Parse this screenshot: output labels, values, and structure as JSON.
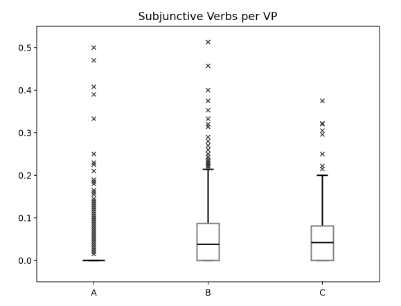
{
  "chart_data": {
    "type": "boxplot",
    "title": "Subjunctive Verbs per VP",
    "xlabel": "",
    "ylabel": "",
    "ylim": [
      -0.05,
      0.55
    ],
    "yticks": [
      0.0,
      0.1,
      0.2,
      0.3,
      0.4,
      0.5
    ],
    "ytick_labels": [
      "0.0",
      "0.1",
      "0.2",
      "0.3",
      "0.4",
      "0.5"
    ],
    "categories": [
      "A",
      "B",
      "C"
    ],
    "grid": false,
    "legend": "none",
    "colors": {
      "box": "#808080",
      "median": "#000000",
      "whisker": "#000000",
      "outlier": "#333333"
    },
    "boxes": [
      {
        "name": "A",
        "q1": 0.0,
        "median": 0.0,
        "q3": 0.0,
        "whisker_low": 0.0,
        "whisker_high": 0.0,
        "outliers": [
          0.5,
          0.47,
          0.408,
          0.39,
          0.333,
          0.25,
          0.23,
          0.225,
          0.21,
          0.19,
          0.185,
          0.18,
          0.165,
          0.16,
          0.155,
          0.145,
          0.14,
          0.135,
          0.13,
          0.125,
          0.12,
          0.115,
          0.11,
          0.105,
          0.1,
          0.095,
          0.09,
          0.085,
          0.08,
          0.075,
          0.07,
          0.065,
          0.06,
          0.055,
          0.05,
          0.045,
          0.04,
          0.035,
          0.03,
          0.025,
          0.02,
          0.015
        ]
      },
      {
        "name": "B",
        "q1": 0.0,
        "median": 0.038,
        "q3": 0.087,
        "whisker_low": 0.0,
        "whisker_high": 0.214,
        "outliers": [
          0.513,
          0.457,
          0.4,
          0.375,
          0.353,
          0.333,
          0.32,
          0.314,
          0.29,
          0.28,
          0.27,
          0.26,
          0.25,
          0.243,
          0.237,
          0.233,
          0.229,
          0.226,
          0.222,
          0.219
        ]
      },
      {
        "name": "C",
        "q1": 0.0,
        "median": 0.042,
        "q3": 0.081,
        "whisker_low": 0.0,
        "whisker_high": 0.2,
        "outliers": [
          0.375,
          0.322,
          0.32,
          0.305,
          0.296,
          0.25,
          0.222,
          0.215
        ]
      }
    ]
  }
}
